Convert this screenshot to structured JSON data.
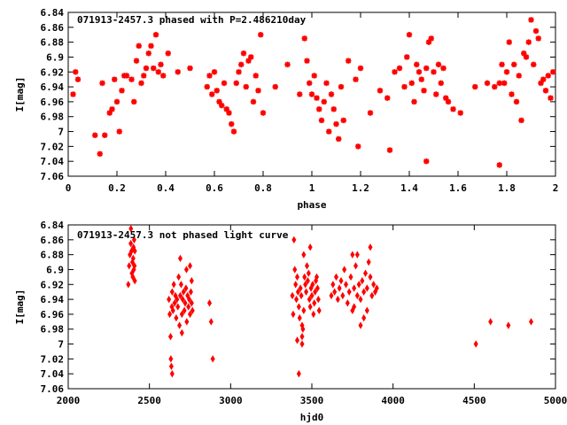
{
  "chart_data": [
    {
      "type": "scatter",
      "title": "071913-2457.3 phased with P=2.486210day",
      "xlabel": "phase",
      "ylabel": "I[mag]",
      "xlim": [
        0,
        2
      ],
      "ylim": [
        7.06,
        6.84
      ],
      "y_reversed": true,
      "grid": false,
      "marker": "star",
      "color": "#ff0000",
      "xticks": [
        "0",
        "0.2",
        "0.4",
        "0.6",
        "0.8",
        "1",
        "1.2",
        "1.4",
        "1.6",
        "1.8",
        "2"
      ],
      "yticks": [
        "6.84",
        "6.86",
        "6.88",
        "6.9",
        "6.92",
        "6.94",
        "6.96",
        "6.98",
        "7",
        "7.02",
        "7.04",
        "7.06"
      ],
      "points": [
        [
          0.02,
          6.95
        ],
        [
          0.03,
          6.92
        ],
        [
          0.04,
          6.93
        ],
        [
          0.11,
          7.005
        ],
        [
          0.13,
          7.03
        ],
        [
          0.14,
          6.935
        ],
        [
          0.15,
          7.005
        ],
        [
          0.17,
          6.975
        ],
        [
          0.18,
          6.97
        ],
        [
          0.19,
          6.93
        ],
        [
          0.2,
          6.96
        ],
        [
          0.21,
          7.0
        ],
        [
          0.22,
          6.945
        ],
        [
          0.23,
          6.925
        ],
        [
          0.24,
          6.925
        ],
        [
          0.26,
          6.93
        ],
        [
          0.27,
          6.96
        ],
        [
          0.28,
          6.905
        ],
        [
          0.29,
          6.885
        ],
        [
          0.3,
          6.935
        ],
        [
          0.31,
          6.925
        ],
        [
          0.32,
          6.915
        ],
        [
          0.33,
          6.895
        ],
        [
          0.34,
          6.885
        ],
        [
          0.35,
          6.915
        ],
        [
          0.36,
          6.87
        ],
        [
          0.37,
          6.92
        ],
        [
          0.38,
          6.91
        ],
        [
          0.39,
          6.925
        ],
        [
          0.41,
          6.895
        ],
        [
          0.45,
          6.92
        ],
        [
          0.5,
          6.915
        ],
        [
          0.57,
          6.94
        ],
        [
          0.58,
          6.925
        ],
        [
          0.59,
          6.95
        ],
        [
          0.6,
          6.92
        ],
        [
          0.61,
          6.945
        ],
        [
          0.62,
          6.96
        ],
        [
          0.63,
          6.965
        ],
        [
          0.64,
          6.935
        ],
        [
          0.65,
          6.97
        ],
        [
          0.66,
          6.975
        ],
        [
          0.67,
          6.99
        ],
        [
          0.68,
          7.0
        ],
        [
          0.69,
          6.935
        ],
        [
          0.7,
          6.92
        ],
        [
          0.71,
          6.91
        ],
        [
          0.72,
          6.895
        ],
        [
          0.73,
          6.94
        ],
        [
          0.74,
          6.905
        ],
        [
          0.75,
          6.9
        ],
        [
          0.76,
          6.96
        ],
        [
          0.77,
          6.925
        ],
        [
          0.78,
          6.945
        ],
        [
          0.79,
          6.87
        ],
        [
          0.8,
          6.975
        ],
        [
          0.85,
          6.94
        ],
        [
          0.9,
          6.91
        ],
        [
          0.95,
          6.95
        ],
        [
          0.97,
          6.875
        ],
        [
          0.98,
          6.905
        ],
        [
          0.99,
          6.935
        ],
        [
          1.0,
          6.95
        ],
        [
          1.01,
          6.925
        ],
        [
          1.02,
          6.955
        ],
        [
          1.03,
          6.97
        ],
        [
          1.04,
          6.985
        ],
        [
          1.05,
          6.96
        ],
        [
          1.06,
          6.935
        ],
        [
          1.07,
          7.0
        ],
        [
          1.08,
          6.95
        ],
        [
          1.09,
          6.97
        ],
        [
          1.1,
          6.99
        ],
        [
          1.11,
          7.01
        ],
        [
          1.12,
          6.94
        ],
        [
          1.13,
          6.985
        ],
        [
          1.15,
          6.905
        ],
        [
          1.18,
          6.93
        ],
        [
          1.19,
          7.02
        ],
        [
          1.2,
          6.915
        ],
        [
          1.24,
          6.975
        ],
        [
          1.28,
          6.945
        ],
        [
          1.31,
          6.955
        ],
        [
          1.32,
          7.025
        ],
        [
          1.34,
          6.92
        ],
        [
          1.36,
          6.915
        ],
        [
          1.38,
          6.94
        ],
        [
          1.39,
          6.9
        ],
        [
          1.4,
          6.87
        ],
        [
          1.41,
          6.935
        ],
        [
          1.42,
          6.96
        ],
        [
          1.43,
          6.91
        ],
        [
          1.44,
          6.92
        ],
        [
          1.45,
          6.93
        ],
        [
          1.46,
          6.945
        ],
        [
          1.47,
          6.915
        ],
        [
          1.48,
          6.88
        ],
        [
          1.49,
          6.875
        ],
        [
          1.5,
          6.92
        ],
        [
          1.51,
          6.95
        ],
        [
          1.52,
          6.91
        ],
        [
          1.53,
          6.935
        ],
        [
          1.54,
          6.915
        ],
        [
          1.55,
          6.955
        ],
        [
          1.56,
          6.96
        ],
        [
          1.58,
          6.97
        ],
        [
          1.61,
          6.975
        ],
        [
          1.67,
          6.94
        ],
        [
          1.72,
          6.935
        ],
        [
          1.75,
          6.94
        ],
        [
          1.77,
          6.935
        ],
        [
          1.78,
          6.91
        ],
        [
          1.79,
          6.935
        ],
        [
          1.8,
          6.92
        ],
        [
          1.81,
          6.88
        ],
        [
          1.82,
          6.95
        ],
        [
          1.83,
          6.91
        ],
        [
          1.84,
          6.96
        ],
        [
          1.85,
          6.925
        ],
        [
          1.86,
          6.985
        ],
        [
          1.87,
          6.895
        ],
        [
          1.88,
          6.9
        ],
        [
          1.89,
          6.88
        ],
        [
          1.9,
          6.85
        ],
        [
          1.91,
          6.91
        ],
        [
          1.92,
          6.865
        ],
        [
          1.93,
          6.875
        ],
        [
          1.94,
          6.935
        ],
        [
          1.95,
          6.93
        ],
        [
          1.96,
          6.945
        ],
        [
          1.97,
          6.925
        ],
        [
          1.98,
          6.955
        ],
        [
          1.99,
          6.92
        ],
        [
          1.47,
          7.04
        ],
        [
          1.77,
          7.045
        ]
      ]
    },
    {
      "type": "scatter",
      "title": "071913-2457.3 not phased light curve",
      "xlabel": "hjd0",
      "ylabel": "I[mag]",
      "xlim": [
        2000,
        5000
      ],
      "ylim": [
        7.06,
        6.84
      ],
      "y_reversed": true,
      "grid": false,
      "marker": "diamond",
      "color": "#ff0000",
      "xticks": [
        "2000",
        "2500",
        "3000",
        "3500",
        "4000",
        "4500",
        "5000"
      ],
      "yticks": [
        "6.84",
        "6.86",
        "6.88",
        "6.9",
        "6.92",
        "6.94",
        "6.96",
        "6.98",
        "7",
        "7.02",
        "7.04",
        "7.06"
      ],
      "points": [
        [
          2370,
          6.92
        ],
        [
          2375,
          6.895
        ],
        [
          2380,
          6.88
        ],
        [
          2385,
          6.865
        ],
        [
          2390,
          6.875
        ],
        [
          2392,
          6.905
        ],
        [
          2395,
          6.89
        ],
        [
          2398,
          6.91
        ],
        [
          2400,
          6.885
        ],
        [
          2402,
          6.87
        ],
        [
          2404,
          6.9
        ],
        [
          2406,
          6.86
        ],
        [
          2408,
          6.895
        ],
        [
          2410,
          6.875
        ],
        [
          2386,
          6.845
        ],
        [
          2410,
          6.915
        ],
        [
          2620,
          6.94
        ],
        [
          2625,
          6.96
        ],
        [
          2630,
          6.99
        ],
        [
          2632,
          7.02
        ],
        [
          2635,
          7.03
        ],
        [
          2638,
          6.95
        ],
        [
          2640,
          6.93
        ],
        [
          2645,
          6.955
        ],
        [
          2650,
          6.92
        ],
        [
          2655,
          6.945
        ],
        [
          2660,
          6.935
        ],
        [
          2665,
          6.965
        ],
        [
          2670,
          6.94
        ],
        [
          2675,
          6.95
        ],
        [
          2680,
          6.91
        ],
        [
          2685,
          6.975
        ],
        [
          2690,
          6.935
        ],
        [
          2695,
          6.92
        ],
        [
          2700,
          6.96
        ],
        [
          2705,
          6.94
        ],
        [
          2710,
          6.93
        ],
        [
          2715,
          6.955
        ],
        [
          2720,
          6.945
        ],
        [
          2725,
          6.925
        ],
        [
          2730,
          6.97
        ],
        [
          2735,
          6.935
        ],
        [
          2740,
          6.95
        ],
        [
          2745,
          6.94
        ],
        [
          2750,
          6.96
        ],
        [
          2755,
          6.93
        ],
        [
          2760,
          6.945
        ],
        [
          2765,
          6.955
        ],
        [
          2640,
          7.04
        ],
        [
          2690,
          6.885
        ],
        [
          2700,
          6.985
        ],
        [
          2728,
          6.9
        ],
        [
          2750,
          6.895
        ],
        [
          2760,
          6.915
        ],
        [
          2870,
          6.945
        ],
        [
          2880,
          6.97
        ],
        [
          2890,
          7.02
        ],
        [
          3380,
          6.935
        ],
        [
          3385,
          6.96
        ],
        [
          3390,
          6.86
        ],
        [
          3395,
          6.9
        ],
        [
          3400,
          6.92
        ],
        [
          3405,
          6.94
        ],
        [
          3410,
          6.91
        ],
        [
          3415,
          6.93
        ],
        [
          3420,
          6.95
        ],
        [
          3425,
          6.965
        ],
        [
          3430,
          6.925
        ],
        [
          3435,
          6.935
        ],
        [
          3440,
          6.975
        ],
        [
          3445,
          6.98
        ],
        [
          3450,
          6.955
        ],
        [
          3455,
          6.91
        ],
        [
          3460,
          6.92
        ],
        [
          3465,
          6.93
        ],
        [
          3470,
          6.895
        ],
        [
          3475,
          6.915
        ],
        [
          3480,
          6.905
        ],
        [
          3485,
          6.94
        ],
        [
          3490,
          6.95
        ],
        [
          3495,
          6.925
        ],
        [
          3500,
          6.935
        ],
        [
          3505,
          6.92
        ],
        [
          3510,
          6.96
        ],
        [
          3515,
          6.945
        ],
        [
          3520,
          6.93
        ],
        [
          3525,
          6.915
        ],
        [
          3530,
          6.91
        ],
        [
          3535,
          6.925
        ],
        [
          3540,
          6.94
        ],
        [
          3545,
          6.955
        ],
        [
          3410,
          6.995
        ],
        [
          3420,
          7.04
        ],
        [
          3440,
          6.99
        ],
        [
          3490,
          6.87
        ],
        [
          3450,
          6.88
        ],
        [
          3440,
          7.0
        ],
        [
          3620,
          6.935
        ],
        [
          3630,
          6.92
        ],
        [
          3640,
          6.93
        ],
        [
          3650,
          6.91
        ],
        [
          3660,
          6.94
        ],
        [
          3670,
          6.925
        ],
        [
          3680,
          6.915
        ],
        [
          3690,
          6.935
        ],
        [
          3700,
          6.9
        ],
        [
          3710,
          6.92
        ],
        [
          3720,
          6.945
        ],
        [
          3730,
          6.93
        ],
        [
          3740,
          6.91
        ],
        [
          3750,
          6.955
        ],
        [
          3760,
          6.925
        ],
        [
          3770,
          6.895
        ],
        [
          3780,
          6.935
        ],
        [
          3790,
          6.92
        ],
        [
          3800,
          6.94
        ],
        [
          3810,
          6.915
        ],
        [
          3820,
          6.93
        ],
        [
          3830,
          6.905
        ],
        [
          3840,
          6.925
        ],
        [
          3850,
          6.89
        ],
        [
          3860,
          6.91
        ],
        [
          3870,
          6.935
        ],
        [
          3880,
          6.92
        ],
        [
          3890,
          6.93
        ],
        [
          3900,
          6.925
        ],
        [
          3750,
          6.88
        ],
        [
          3780,
          6.88
        ],
        [
          3800,
          6.975
        ],
        [
          3820,
          6.965
        ],
        [
          3840,
          6.955
        ],
        [
          3860,
          6.87
        ],
        [
          3760,
          6.95
        ],
        [
          4510,
          7.0
        ],
        [
          4600,
          6.97
        ],
        [
          4710,
          6.975
        ],
        [
          4850,
          6.97
        ]
      ]
    }
  ]
}
